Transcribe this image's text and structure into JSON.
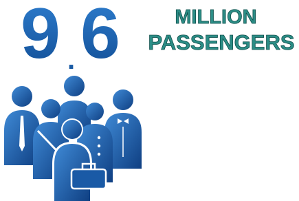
{
  "headline": {
    "number_whole": "9",
    "number_point": ".",
    "number_fraction": "6",
    "line1": "MILLION",
    "line2": "PASSENGERS"
  }
}
